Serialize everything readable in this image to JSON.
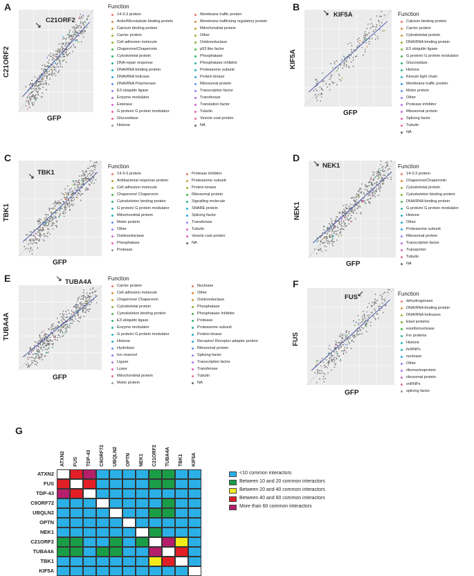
{
  "colors": {
    "panel_bg": "#ebebeb",
    "points": "#7a7a7a",
    "fit_line": "#3b4fa8",
    "diag_line": "#aaaaaa",
    "heatmap": {
      "lt10": "#2ab0e6",
      "10to20": "#1a9d47",
      "20to40": "#f3ec1a",
      "40to60": "#e21e26",
      "gt60": "#b51e6a",
      "self": "#ffffff"
    }
  },
  "legend_palette": [
    "#e8746b",
    "#d98a3a",
    "#c89b2e",
    "#a8a52b",
    "#7cb030",
    "#45b43f",
    "#2bb467",
    "#24b58c",
    "#22b3ad",
    "#25adc8",
    "#2aa3df",
    "#5b90ee",
    "#8a7ff2",
    "#b06ee8",
    "#cf61d4",
    "#e35cb6",
    "#ec6495",
    "#999999"
  ],
  "panels": [
    {
      "letter": "A",
      "gene": "C21ORF2",
      "xlabel": "GFP",
      "ylabel": "C21ORF2",
      "legend_title": "Function",
      "legend_col1": [
        "14-3-3 protein",
        "Actin/Microtubule binding protein",
        "Calcium binding protein",
        "Carrier protein",
        "Cell adhesion molecule",
        "Chaperone/Chaperonin",
        "Cytoskeletal protein",
        "DNA repair response",
        "DNA/RNA binding protein",
        "DNA/RNA helicase",
        "DNA/RNA Polymerase",
        "E3 ubiquitin ligase",
        "Enzyme modulator",
        "Esterase",
        "G protein/ G protein modulator",
        "Glucosidase",
        "Histone"
      ],
      "legend_col2": [
        "Membrane traffic protein",
        "Membrane trafficking regulatory protein",
        "Mitochondrial protein",
        "Other",
        "Oxidoreductase",
        "p53 like factor",
        "Phosphatase",
        "Phosphatase inhibitor",
        "Proteasome subunit",
        "Protein kinase",
        "Ribosomal protein",
        "Transcription factor",
        "Transferase",
        "Translation factor",
        "Tubulin",
        "Vesicle coat protein",
        "NA"
      ]
    },
    {
      "letter": "B",
      "gene": "KIF5A",
      "xlabel": "GFP",
      "ylabel": "KIF5A",
      "legend_title": "Function",
      "legend_col1": [
        "Calcium binding protein",
        "Carrier protein",
        "Cytoskeletal protein",
        "DNA/RNA binding protein",
        "E3 ubiquitin ligase",
        "G protein/ G protein modulator",
        "Glucosidase",
        "Histone",
        "Kinesin light chain",
        "Membrane traffic protein",
        "Motor protein",
        "Other",
        "Protease inhibitor",
        "Ribosomal protein",
        "Splicing factor",
        "Tubulin",
        "NA"
      ]
    },
    {
      "letter": "C",
      "gene": "TBK1",
      "xlabel": "GFP",
      "ylabel": "TBK1",
      "legend_title": "Function",
      "legend_col1": [
        "14-3-3 protein",
        "Antibacterial response protein",
        "Cell adhesion molecule",
        "Chaperone/ Chaperonin",
        "Cytoskeleton binding protein",
        "G protein/ G protein modulator",
        "Mitochondrial protein",
        "Motor protein",
        "Other",
        "Oxidoreductase",
        "Phosphatase",
        "Protease"
      ],
      "legend_col2": [
        "Protease inhibitor",
        "Proteasome subunit",
        "Protein kinase",
        "Ribosomal protein",
        "Signalling molecule",
        "SNARE protein",
        "Splicing factor",
        "Transferase",
        "Tubulin",
        "Vesicle coat protein",
        "NA"
      ]
    },
    {
      "letter": "D",
      "gene": "NEK1",
      "xlabel": "GFP",
      "ylabel": "NEK1",
      "legend_title": "Function",
      "legend_col1": [
        "14-3-3 protein",
        "Chaperone/Chaperonin",
        "Cytoskeletal protein",
        "Cytoskeleton binding protein",
        "DNA/RNA binding protein",
        "G protein/ G protein modulator",
        "Histone",
        "Other",
        "Proteasome subunit",
        "Ribosomal protein",
        "Transcription factor",
        "Transporter",
        "Tubulin",
        "NA"
      ]
    },
    {
      "letter": "E",
      "gene": "TUBA4A",
      "xlabel": "GFP",
      "ylabel": "TUBA4A",
      "legend_title": "Function",
      "legend_col1": [
        "Carrier protein",
        "Cell adhesion molecule",
        "Chaperone/ Chaperonin",
        "Cytoskeletal protein",
        "Cytoskeleton binding protein",
        "E3 ubiquitin ligase",
        "Enzyme modulator",
        "G protein/ G protein modulator",
        "Histone",
        "Hydrolase",
        "Ion channel",
        "Ligase",
        "Lyase",
        "Mitochondrial protein",
        "Motor protein"
      ],
      "legend_col2": [
        "Nuclease",
        "Other",
        "Oxidoreductase",
        "Phosphatase",
        "Phosphatase Inhibitor",
        "Protease",
        "Proteasome subunit",
        "Protein kinase",
        "Receptor/ Receptor adaptor protein",
        "Ribosomal protein",
        "Splicing factor",
        "Transcription factor",
        "Transferase",
        "Tubulin",
        "NA"
      ]
    },
    {
      "letter": "F",
      "gene": "FUS",
      "xlabel": "GFP",
      "ylabel": "FUS",
      "legend_title": "Function",
      "legend_col1": [
        "dehydrogenase",
        "DNA/RNA binding protein",
        "DNA/RNA helicases",
        "Elavl proteins",
        "exoribonuclease",
        "Fxr proteins",
        "Histone",
        "hnRNPs",
        "nuclease",
        "Other",
        "ribonucleoprotein",
        "ribosomal protein",
        "snRNPs",
        "splicing factor"
      ]
    }
  ],
  "heatmap": {
    "letter": "G",
    "labels": [
      "ATXN2",
      "FUS",
      "TDP-43",
      "C9ORF72",
      "UBQLN2",
      "OPTN",
      "NEK1",
      "C21ORF2",
      "TUBA4A",
      "TBK1",
      "KIF5A"
    ],
    "matrix": [
      [
        "self",
        "40to60",
        "gt60",
        "lt10",
        "lt10",
        "lt10",
        "lt10",
        "10to20",
        "10to20",
        "lt10",
        "lt10"
      ],
      [
        "40to60",
        "self",
        "40to60",
        "lt10",
        "lt10",
        "lt10",
        "lt10",
        "10to20",
        "10to20",
        "lt10",
        "lt10"
      ],
      [
        "gt60",
        "40to60",
        "self",
        "lt10",
        "lt10",
        "lt10",
        "lt10",
        "lt10",
        "lt10",
        "lt10",
        "lt10"
      ],
      [
        "lt10",
        "lt10",
        "lt10",
        "self",
        "lt10",
        "lt10",
        "lt10",
        "lt10",
        "10to20",
        "lt10",
        "lt10"
      ],
      [
        "lt10",
        "lt10",
        "lt10",
        "lt10",
        "self",
        "lt10",
        "lt10",
        "10to20",
        "10to20",
        "lt10",
        "lt10"
      ],
      [
        "lt10",
        "lt10",
        "lt10",
        "lt10",
        "lt10",
        "self",
        "lt10",
        "lt10",
        "lt10",
        "lt10",
        "lt10"
      ],
      [
        "lt10",
        "lt10",
        "lt10",
        "lt10",
        "lt10",
        "lt10",
        "self",
        "10to20",
        "lt10",
        "lt10",
        "lt10"
      ],
      [
        "10to20",
        "10to20",
        "lt10",
        "lt10",
        "10to20",
        "lt10",
        "10to20",
        "self",
        "gt60",
        "20to40",
        "lt10"
      ],
      [
        "10to20",
        "10to20",
        "lt10",
        "10to20",
        "10to20",
        "lt10",
        "lt10",
        "gt60",
        "self",
        "40to60",
        "lt10"
      ],
      [
        "lt10",
        "lt10",
        "lt10",
        "lt10",
        "lt10",
        "lt10",
        "lt10",
        "20to40",
        "40to60",
        "self",
        "lt10"
      ],
      [
        "lt10",
        "lt10",
        "lt10",
        "lt10",
        "lt10",
        "lt10",
        "lt10",
        "lt10",
        "lt10",
        "lt10",
        "self"
      ]
    ],
    "legend": [
      {
        "key": "lt10",
        "label": "<10 common interactors"
      },
      {
        "key": "10to20",
        "label": "Between 10 and 20 common interactors"
      },
      {
        "key": "20to40",
        "label": "Between 20 and 40 common interactors"
      },
      {
        "key": "40to60",
        "label": "Between 40  and 60 common interactors"
      },
      {
        "key": "gt60",
        "label": "More than 60  common interactors"
      }
    ]
  }
}
